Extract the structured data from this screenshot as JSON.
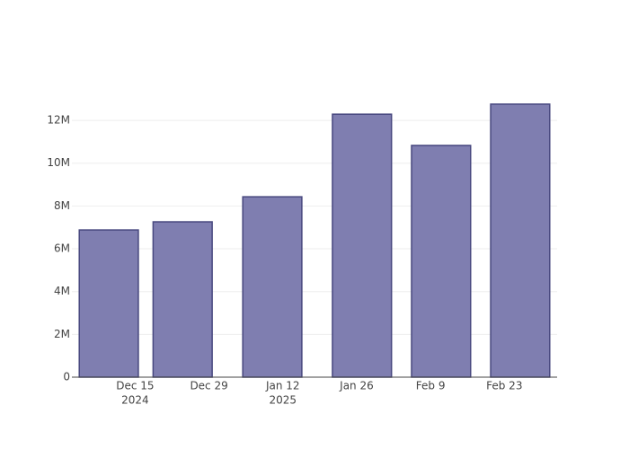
{
  "chart_data": {
    "type": "bar",
    "x": [
      "2024-12-10",
      "2024-12-24",
      "2025-01-10",
      "2025-01-27",
      "2025-02-11",
      "2025-02-26"
    ],
    "values": [
      6880000,
      7260000,
      8430000,
      12290000,
      10830000,
      12760000
    ],
    "color": "#7f7eb0",
    "edge_color": "#48487f",
    "xlim": [
      "2024-12-03",
      "2025-03-05"
    ],
    "xticks": [
      {
        "value": "2024-12-15",
        "label": "Dec 15",
        "sublabel": "2024"
      },
      {
        "value": "2024-12-29",
        "label": "Dec 29"
      },
      {
        "value": "2025-01-12",
        "label": "Jan 12",
        "sublabel": "2025"
      },
      {
        "value": "2025-01-26",
        "label": "Jan 26"
      },
      {
        "value": "2025-02-09",
        "label": "Feb 9"
      },
      {
        "value": "2025-02-23",
        "label": "Feb 23"
      }
    ],
    "ylim": [
      0,
      13430000
    ],
    "yticks": [
      0,
      {
        "value": 2000000,
        "label": "2M"
      },
      {
        "value": 4000000,
        "label": "4M"
      },
      {
        "value": 6000000,
        "label": "6M"
      },
      {
        "value": 8000000,
        "label": "8M"
      },
      {
        "value": 10000000,
        "label": "10M"
      },
      {
        "value": 12000000,
        "label": "12M"
      }
    ],
    "grid": true
  }
}
